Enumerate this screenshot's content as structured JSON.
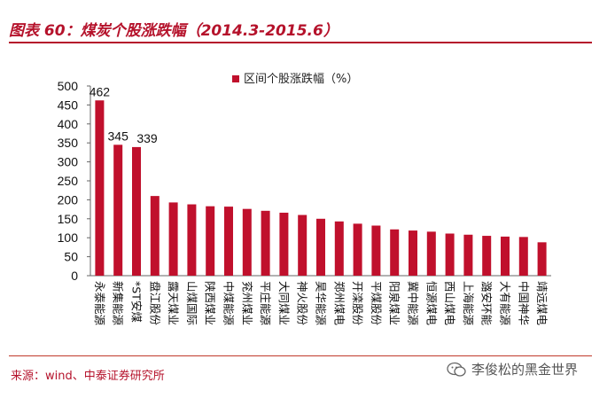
{
  "header": {
    "title": "图表 60：煤炭个股涨跌幅（2014.3-2015.6）"
  },
  "footer": {
    "source": "来源：wind、中泰证券研究所",
    "watermark": "李俊松的黑金世界"
  },
  "icons": {
    "watermark_icon": "wechat-icon"
  },
  "colors": {
    "bar": "#c0102c",
    "title": "#b5122b",
    "rule": "#b5122b"
  },
  "chart_data": {
    "type": "bar",
    "categories": [
      "永泰能源",
      "新集能源",
      "*ST安煤",
      "盘江股份",
      "露天煤业",
      "山煤国际",
      "陕西煤业",
      "中煤能源",
      "兖州煤业",
      "平庄能源",
      "大同煤业",
      "神火股份",
      "昊华能源",
      "郑州煤电",
      "开滦股份",
      "平煤股份",
      "阳泉煤业",
      "冀中能源",
      "恒源煤电",
      "西山煤电",
      "上海能源",
      "潞安环能",
      "大有能源",
      "中国神华",
      "靖远煤电"
    ],
    "series": [
      {
        "name": "区间个股涨跌幅（%）",
        "values": [
          462,
          345,
          339,
          210,
          193,
          188,
          183,
          182,
          176,
          171,
          166,
          160,
          150,
          143,
          137,
          132,
          122,
          119,
          116,
          111,
          108,
          105,
          103,
          102,
          88
        ]
      }
    ],
    "data_labels": [
      "462",
      "345",
      "339"
    ],
    "yticks": [
      0,
      50,
      100,
      150,
      200,
      250,
      300,
      350,
      400,
      450,
      500
    ],
    "ylim": [
      0,
      500
    ],
    "legend_position": "top-center",
    "grid": false
  }
}
